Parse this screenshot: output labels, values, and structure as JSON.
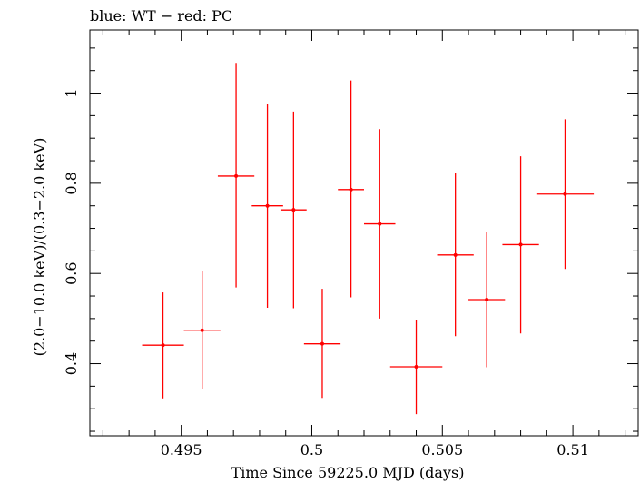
{
  "chart_data": {
    "type": "scatter",
    "title": "blue: WT − red: PC",
    "xlabel": "Time Since 59225.0 MJD (days)",
    "ylabel": "(2.0−10.0 keV)/(0.3−2.0 keV)",
    "xlim": [
      0.4915,
      0.5125
    ],
    "ylim": [
      0.24,
      1.14
    ],
    "x_ticks": [
      0.495,
      0.5,
      0.505,
      0.51
    ],
    "x_tick_labels": [
      "0.495",
      "0.5",
      "0.505",
      "0.51"
    ],
    "y_ticks": [
      0.4,
      0.6,
      0.8,
      1.0
    ],
    "y_tick_labels": [
      "0.4",
      "0.6",
      "0.8",
      "1"
    ],
    "grid": false,
    "series": [
      {
        "color": "#ff0000",
        "points": [
          {
            "x": 0.4943,
            "xerr": 0.0008,
            "y": 0.441,
            "yerr_low": 0.118,
            "yerr_high": 0.117
          },
          {
            "x": 0.4958,
            "xerr": 0.0007,
            "y": 0.474,
            "yerr_low": 0.131,
            "yerr_high": 0.131
          },
          {
            "x": 0.4971,
            "xerr": 0.0007,
            "y": 0.816,
            "yerr_low": 0.247,
            "yerr_high": 0.251
          },
          {
            "x": 0.4983,
            "xerr": 0.0006,
            "y": 0.75,
            "yerr_low": 0.226,
            "yerr_high": 0.225
          },
          {
            "x": 0.4993,
            "xerr": 0.0005,
            "y": 0.741,
            "yerr_low": 0.218,
            "yerr_high": 0.218
          },
          {
            "x": 0.5004,
            "xerr": 0.0007,
            "y": 0.444,
            "yerr_low": 0.12,
            "yerr_high": 0.122
          },
          {
            "x": 0.5015,
            "xerr": 0.0005,
            "y": 0.786,
            "yerr_low": 0.239,
            "yerr_high": 0.242
          },
          {
            "x": 0.5026,
            "xerr": 0.0006,
            "y": 0.71,
            "yerr_low": 0.21,
            "yerr_high": 0.21
          },
          {
            "x": 0.504,
            "xerr": 0.001,
            "y": 0.393,
            "yerr_low": 0.105,
            "yerr_high": 0.104
          },
          {
            "x": 0.5055,
            "xerr": 0.0007,
            "y": 0.641,
            "yerr_low": 0.18,
            "yerr_high": 0.182
          },
          {
            "x": 0.5067,
            "xerr": 0.0007,
            "y": 0.542,
            "yerr_low": 0.15,
            "yerr_high": 0.151
          },
          {
            "x": 0.508,
            "xerr": 0.0007,
            "y": 0.664,
            "yerr_low": 0.197,
            "yerr_high": 0.196
          },
          {
            "x": 0.5097,
            "xerr": 0.0011,
            "y": 0.776,
            "yerr_low": 0.166,
            "yerr_high": 0.166
          }
        ]
      }
    ]
  }
}
